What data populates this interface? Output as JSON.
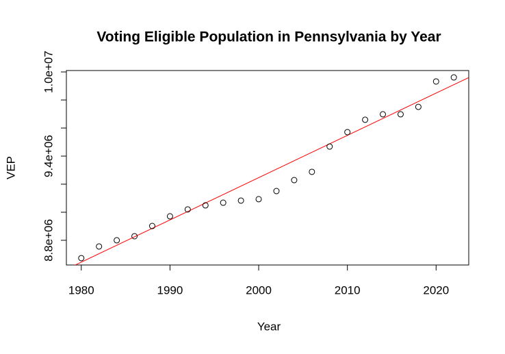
{
  "chart_data": {
    "type": "scatter",
    "title": "Voting Eligible Population in Pennsylvania by Year",
    "x_label": "Year",
    "y_label": "VEP",
    "x": [
      1980,
      1982,
      1984,
      1986,
      1988,
      1990,
      1992,
      1994,
      1996,
      1998,
      2000,
      2002,
      2004,
      2006,
      2008,
      2010,
      2012,
      2014,
      2016,
      2018,
      2020,
      2022
    ],
    "values": [
      8673000,
      8756000,
      8800000,
      8829000,
      8902000,
      8971000,
      9020000,
      9049000,
      9068000,
      9083000,
      9093000,
      9151000,
      9229000,
      9288000,
      9468000,
      9571000,
      9659000,
      9698000,
      9698000,
      9751000,
      9932000,
      9961000
    ],
    "point_color": "#000000",
    "trend_line": {
      "color": "#ff0000",
      "x": [
        1980,
        2020
      ],
      "values": [
        8644000,
        9849000
      ]
    },
    "xlim": [
      1978.32,
      2023.68
    ],
    "xticks": [
      1980,
      1990,
      2000,
      2010,
      2020
    ],
    "ylim": [
      8624000,
      10010000
    ],
    "yticks": [
      {
        "value": 8800000,
        "label": "8.8e+06"
      },
      {
        "value": 9000000,
        "label": null
      },
      {
        "value": 9200000,
        "label": null
      },
      {
        "value": 9400000,
        "label": "9.4e+06"
      },
      {
        "value": 9600000,
        "label": null
      },
      {
        "value": 9800000,
        "label": null
      },
      {
        "value": 10000000,
        "label": "1.0e+07"
      }
    ]
  }
}
